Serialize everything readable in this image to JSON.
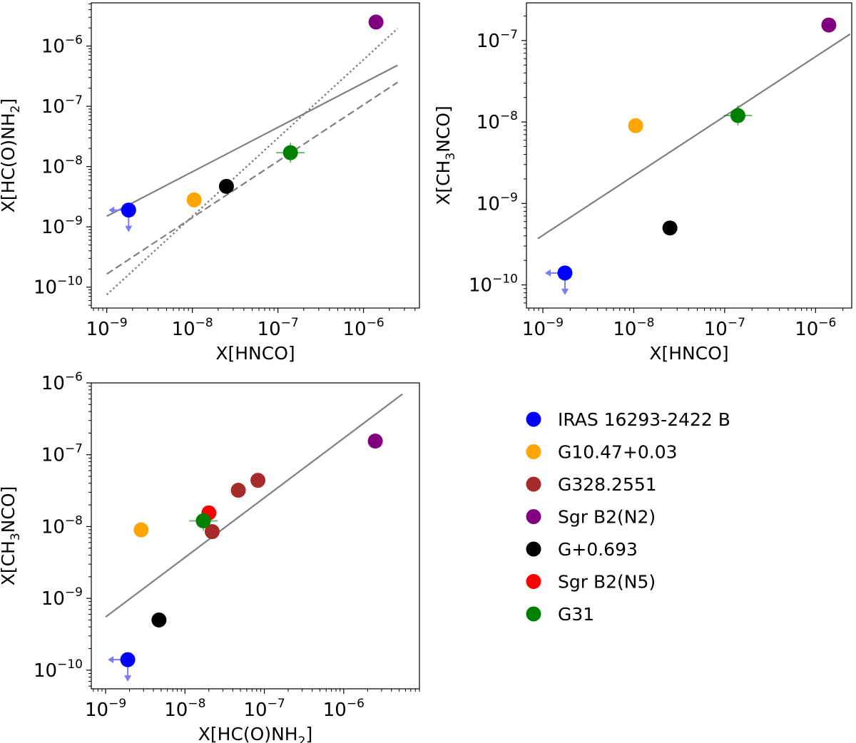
{
  "colors": {
    "IRAS 16293-2422 B": "#0000ff",
    "G10.47+0.03": "#ffa500",
    "G328.2551": "#a52a2a",
    "Sgr B2(N2)": "#800080",
    "G+0.693": "#000000",
    "Sgr B2(N5)": "#ff0000",
    "G31": "#008000",
    "fit_line": "#7f7f7f",
    "upper_limit_arrow": "#7b7bff"
  },
  "legend": {
    "entries": [
      "IRAS 16293-2422 B",
      "G10.47+0.03",
      "G328.2551",
      "Sgr B2(N2)",
      "G+0.693",
      "Sgr B2(N5)",
      "G31"
    ]
  },
  "chart_data": [
    {
      "type": "scatter",
      "panel": "top-left",
      "xlabel": "X[HNCO]",
      "ylabel_parts": [
        "X[HC(O)NH",
        "2",
        "]"
      ],
      "xscale": "log",
      "yscale": "log",
      "xlim": [
        6.6e-10,
        4.5e-06
      ],
      "ylim": [
        4.5e-11,
        5.2e-06
      ],
      "xticks": [
        {
          "base": "10",
          "exp": "−9",
          "v": 1e-09
        },
        {
          "base": "10",
          "exp": "−8",
          "v": 1e-08
        },
        {
          "base": "10",
          "exp": "−7",
          "v": 1e-07
        },
        {
          "base": "10",
          "exp": "−6",
          "v": 1e-06
        }
      ],
      "yticks": [
        {
          "base": "10",
          "exp": "−10",
          "v": 1e-10
        },
        {
          "base": "10",
          "exp": "−9",
          "v": 1e-09
        },
        {
          "base": "10",
          "exp": "−8",
          "v": 1e-08
        },
        {
          "base": "10",
          "exp": "−7",
          "v": 1e-07
        },
        {
          "base": "10",
          "exp": "−6",
          "v": 1e-06
        }
      ],
      "points": [
        {
          "source": "IRAS 16293-2422 B",
          "x": 1.8e-09,
          "y": 1.9e-09,
          "upper_limit": true
        },
        {
          "source": "G10.47+0.03",
          "x": 1.05e-08,
          "y": 2.8e-09
        },
        {
          "source": "G+0.693",
          "x": 2.5e-08,
          "y": 4.7e-09
        },
        {
          "source": "G31",
          "x": 1.4e-07,
          "y": 1.7e-08
        },
        {
          "source": "Sgr B2(N2)",
          "x": 1.4e-06,
          "y": 2.5e-06
        }
      ],
      "lines": [
        {
          "style": "solid",
          "x": [
            1e-09,
            2.5e-06
          ],
          "y": [
            1.5e-09,
            4.8e-07
          ]
        },
        {
          "style": "dashed",
          "x": [
            1e-09,
            2.5e-06
          ],
          "y": [
            1.65e-10,
            2.5e-07
          ]
        },
        {
          "style": "dotted",
          "x": [
            1e-09,
            2.5e-06
          ],
          "y": [
            7.5e-11,
            1.95e-06
          ]
        }
      ]
    },
    {
      "type": "scatter",
      "panel": "top-right",
      "xlabel": "X[HNCO]",
      "ylabel_parts": [
        "X[CH",
        "3",
        "NCO]"
      ],
      "xscale": "log",
      "yscale": "log",
      "xlim": [
        6.6e-10,
        2.5e-06
      ],
      "ylim": [
        5.2e-11,
        2.9e-07
      ],
      "xticks": [
        {
          "base": "10",
          "exp": "−9",
          "v": 1e-09
        },
        {
          "base": "10",
          "exp": "−8",
          "v": 1e-08
        },
        {
          "base": "10",
          "exp": "−7",
          "v": 1e-07
        },
        {
          "base": "10",
          "exp": "−6",
          "v": 1e-06
        }
      ],
      "yticks": [
        {
          "base": "10",
          "exp": "−10",
          "v": 1e-10
        },
        {
          "base": "10",
          "exp": "−9",
          "v": 1e-09
        },
        {
          "base": "10",
          "exp": "−8",
          "v": 1e-08
        },
        {
          "base": "10",
          "exp": "−7",
          "v": 1e-07
        }
      ],
      "points": [
        {
          "source": "IRAS 16293-2422 B",
          "x": 1.75e-09,
          "y": 1.4e-10,
          "upper_limit": true
        },
        {
          "source": "G10.47+0.03",
          "x": 1.05e-08,
          "y": 9e-09
        },
        {
          "source": "G+0.693",
          "x": 2.5e-08,
          "y": 5e-10
        },
        {
          "source": "G31",
          "x": 1.4e-07,
          "y": 1.2e-08
        },
        {
          "source": "Sgr B2(N2)",
          "x": 1.4e-06,
          "y": 1.55e-07
        }
      ],
      "lines": [
        {
          "style": "solid",
          "x": [
            8.8e-10,
            2.4e-06
          ],
          "y": [
            3.7e-10,
            1.2e-07
          ]
        }
      ]
    },
    {
      "type": "scatter",
      "panel": "bottom-left",
      "xlabel_parts": [
        "X[HC(O)NH",
        "2",
        "]"
      ],
      "ylabel_parts": [
        "X[CH",
        "3",
        "NCO]"
      ],
      "xscale": "log",
      "yscale": "log",
      "xlim": [
        6.6e-10,
        9e-06
      ],
      "ylim": [
        5.5e-11,
        1e-06
      ],
      "xticks": [
        {
          "base": "10",
          "exp": "−9",
          "v": 1e-09
        },
        {
          "base": "10",
          "exp": "−8",
          "v": 1e-08
        },
        {
          "base": "10",
          "exp": "−7",
          "v": 1e-07
        },
        {
          "base": "10",
          "exp": "−6",
          "v": 1e-06
        }
      ],
      "yticks": [
        {
          "base": "10",
          "exp": "−10",
          "v": 1e-10
        },
        {
          "base": "10",
          "exp": "−9",
          "v": 1e-09
        },
        {
          "base": "10",
          "exp": "−8",
          "v": 1e-08
        },
        {
          "base": "10",
          "exp": "−7",
          "v": 1e-07
        },
        {
          "base": "10",
          "exp": "−6",
          "v": 1e-06
        }
      ],
      "points": [
        {
          "source": "IRAS 16293-2422 B",
          "x": 1.9e-09,
          "y": 1.4e-10,
          "upper_limit": true
        },
        {
          "source": "G10.47+0.03",
          "x": 2.8e-09,
          "y": 9e-09
        },
        {
          "source": "G+0.693",
          "x": 4.7e-09,
          "y": 5e-10
        },
        {
          "source": "G328.2551",
          "x": 4.7e-08,
          "y": 3.2e-08
        },
        {
          "source": "G328.2551",
          "x": 8.3e-08,
          "y": 4.4e-08
        },
        {
          "source": "G328.2551",
          "x": 2.2e-08,
          "y": 8.5e-09
        },
        {
          "source": "Sgr B2(N5)",
          "x": 2e-08,
          "y": 1.55e-08
        },
        {
          "source": "G31",
          "x": 1.7e-08,
          "y": 1.2e-08
        },
        {
          "source": "Sgr B2(N2)",
          "x": 2.5e-06,
          "y": 1.55e-07
        }
      ],
      "lines": [
        {
          "style": "solid",
          "x": [
            1e-09,
            5.5e-06
          ],
          "y": [
            5.5e-10,
            7e-07
          ]
        }
      ]
    }
  ]
}
